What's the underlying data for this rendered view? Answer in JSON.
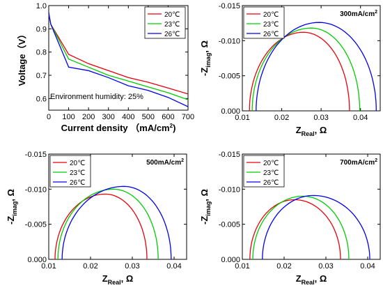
{
  "chart_data": [
    {
      "type": "line",
      "xlabel": "Current density （mA/cm²)",
      "ylabel": "Voltage（V）",
      "xlim": [
        0,
        700
      ],
      "ylim": [
        0.55,
        1.0
      ],
      "xticks": [
        "0",
        "100",
        "200",
        "300",
        "400",
        "500",
        "600",
        "700"
      ],
      "yticks": [
        "0.6",
        "0.7",
        "0.8",
        "0.9",
        "1.0"
      ],
      "annotation": "Environment humidity: 25%",
      "legend": {
        "position": "top-right"
      },
      "series": [
        {
          "name": "20℃",
          "color": "#e8000b",
          "x": [
            0,
            10,
            100,
            200,
            300,
            400,
            500,
            600,
            700
          ],
          "y": [
            0.96,
            0.92,
            0.79,
            0.75,
            0.72,
            0.69,
            0.67,
            0.645,
            0.62
          ]
        },
        {
          "name": "23℃",
          "color": "#00cc00",
          "x": [
            0,
            10,
            100,
            200,
            300,
            400,
            500,
            600,
            700
          ],
          "y": [
            0.965,
            0.92,
            0.77,
            0.735,
            0.7,
            0.675,
            0.65,
            0.625,
            0.595
          ]
        },
        {
          "name": "26℃",
          "color": "#0000ee",
          "x": [
            0,
            10,
            100,
            200,
            300,
            400,
            500,
            600,
            700
          ],
          "y": [
            0.97,
            0.92,
            0.735,
            0.72,
            0.69,
            0.655,
            0.635,
            0.605,
            0.565
          ]
        }
      ]
    },
    {
      "type": "line",
      "xlabel": "Z_Real, Ω",
      "ylabel": "-Z_imag, Ω",
      "xlim": [
        0.01,
        0.045
      ],
      "ylim": [
        0,
        -0.015
      ],
      "xticks": [
        "0.01",
        "0.02",
        "0.03",
        "0.04"
      ],
      "yticks": [
        "0.000",
        "-0.005",
        "-0.010",
        "-0.015"
      ],
      "annotation": "300mA/cm²",
      "legend": {
        "position": "top-left"
      },
      "series": [
        {
          "name": "20℃",
          "color": "#e8000b",
          "r0": 0.0118,
          "r1": 0.0372,
          "peak": -0.0112,
          "xpeak": 0.0255
        },
        {
          "name": "23℃",
          "color": "#00cc00",
          "r0": 0.0125,
          "r1": 0.0398,
          "peak": -0.0118,
          "xpeak": 0.0275
        },
        {
          "name": "26℃",
          "color": "#0000ee",
          "r0": 0.0135,
          "r1": 0.044,
          "peak": -0.0126,
          "xpeak": 0.0295
        }
      ]
    },
    {
      "type": "line",
      "xlabel": "Z_Real, Ω",
      "ylabel": "-Z_imag, Ω",
      "xlim": [
        0.01,
        0.043
      ],
      "ylim": [
        0,
        -0.015
      ],
      "xticks": [
        "0.01",
        "0.02",
        "0.03",
        "0.04"
      ],
      "yticks": [
        "0.000",
        "-0.005",
        "-0.010",
        "-0.015"
      ],
      "annotation": "500mA/cm²",
      "legend": {
        "position": "top-left"
      },
      "series": [
        {
          "name": "20℃",
          "color": "#e8000b",
          "r0": 0.0115,
          "r1": 0.0335,
          "peak": -0.0093,
          "xpeak": 0.0235
        },
        {
          "name": "23℃",
          "color": "#00cc00",
          "r0": 0.0122,
          "r1": 0.0362,
          "peak": -0.01,
          "xpeak": 0.0255
        },
        {
          "name": "26℃",
          "color": "#0000ee",
          "r0": 0.0132,
          "r1": 0.0393,
          "peak": -0.0104,
          "xpeak": 0.028
        }
      ]
    },
    {
      "type": "line",
      "xlabel": "Z_Real, Ω",
      "ylabel": "-Z_imag, Ω",
      "xlim": [
        0.01,
        0.043
      ],
      "ylim": [
        0,
        -0.015
      ],
      "xticks": [
        "0.01",
        "0.02",
        "0.03",
        "0.04"
      ],
      "yticks": [
        "0.000",
        "-0.005",
        "-0.010",
        "-0.015"
      ],
      "annotation": "700mA/cm²",
      "legend": {
        "position": "top-left"
      },
      "series": [
        {
          "name": "20℃",
          "color": "#e8000b",
          "r0": 0.0118,
          "r1": 0.0335,
          "peak": -0.0085,
          "xpeak": 0.0225
        },
        {
          "name": "23℃",
          "color": "#00cc00",
          "r0": 0.0125,
          "r1": 0.0355,
          "peak": -0.009,
          "xpeak": 0.0245
        },
        {
          "name": "26℃",
          "color": "#0000ee",
          "r0": 0.0148,
          "r1": 0.0405,
          "peak": -0.0091,
          "xpeak": 0.027
        }
      ]
    }
  ]
}
